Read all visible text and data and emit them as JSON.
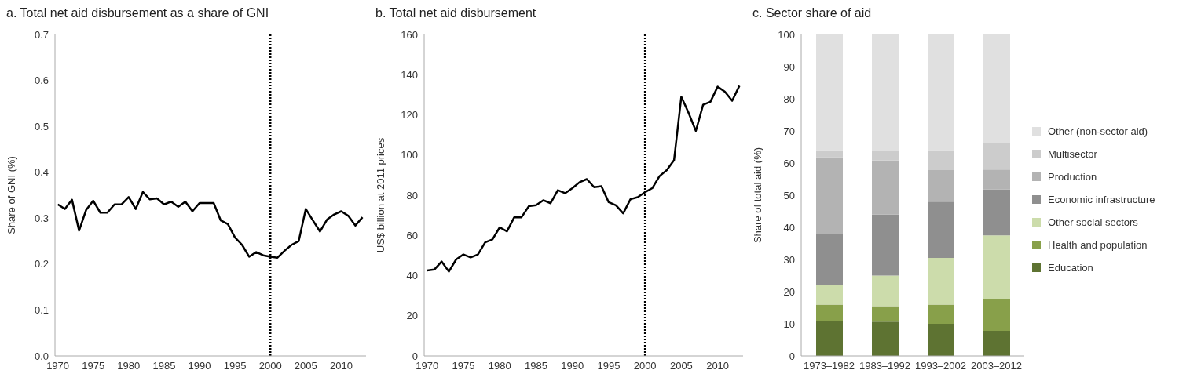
{
  "chart_data": [
    {
      "type": "line",
      "title": "a. Total net aid disbursement as a share of GNI",
      "ylabel": "Share of GNI (%)",
      "x": [
        1970,
        1971,
        1972,
        1973,
        1974,
        1975,
        1976,
        1977,
        1978,
        1979,
        1980,
        1981,
        1982,
        1983,
        1984,
        1985,
        1986,
        1987,
        1988,
        1989,
        1990,
        1991,
        1992,
        1993,
        1994,
        1995,
        1996,
        1997,
        1998,
        1999,
        2000,
        2001,
        2002,
        2003,
        2004,
        2005,
        2006,
        2007,
        2008,
        2009,
        2010,
        2011,
        2012,
        2013
      ],
      "series": [
        {
          "color": "#000000",
          "values": [
            0.33,
            0.32,
            0.34,
            0.273,
            0.318,
            0.338,
            0.312,
            0.312,
            0.33,
            0.33,
            0.346,
            0.32,
            0.357,
            0.341,
            0.343,
            0.33,
            0.336,
            0.325,
            0.336,
            0.315,
            0.333,
            0.333,
            0.333,
            0.295,
            0.287,
            0.258,
            0.242,
            0.216,
            0.226,
            0.219,
            0.216,
            0.214,
            0.229,
            0.242,
            0.25,
            0.32,
            0.295,
            0.271,
            0.297,
            0.308,
            0.315,
            0.305,
            0.284,
            0.302
          ]
        }
      ],
      "xlim": [
        1969.6,
        2013.5
      ],
      "xticks": [
        1970,
        1975,
        1980,
        1985,
        1990,
        1995,
        2000,
        2005,
        2010
      ],
      "ylim": [
        0,
        0.7
      ],
      "yticks": [
        {
          "value": 0,
          "label": "0.0"
        },
        0.1,
        0.2,
        0.3,
        0.4,
        0.5,
        0.6,
        0.7
      ],
      "ref_lines": [
        {
          "axis": "x",
          "value": 2000,
          "line_style": "dotted",
          "color": "#000000"
        }
      ],
      "grid": false,
      "marker": "none",
      "line_style": "solid"
    },
    {
      "type": "line",
      "title": "b. Total net aid disbursement",
      "ylabel": "US$ billion at 2011 prices",
      "x": [
        1970,
        1971,
        1972,
        1973,
        1974,
        1975,
        1976,
        1977,
        1978,
        1979,
        1980,
        1981,
        1982,
        1983,
        1984,
        1985,
        1986,
        1987,
        1988,
        1989,
        1990,
        1991,
        1992,
        1993,
        1994,
        1995,
        1996,
        1997,
        1998,
        1999,
        2000,
        2001,
        2002,
        2003,
        2004,
        2005,
        2006,
        2007,
        2008,
        2009,
        2010,
        2011,
        2012,
        2013
      ],
      "series": [
        {
          "color": "#000000",
          "values": [
            42.5,
            43,
            47,
            42,
            48,
            50.5,
            49,
            50.5,
            56.5,
            58,
            64,
            62,
            69,
            69,
            74.5,
            75,
            77.5,
            76,
            82.5,
            81,
            83.5,
            86.5,
            88,
            84,
            84.5,
            76.5,
            75,
            71,
            78,
            79,
            81.5,
            83.5,
            89.5,
            92.5,
            97.5,
            129,
            121,
            112,
            125,
            126.5,
            134,
            131.5,
            127,
            134.5
          ]
        }
      ],
      "xlim": [
        1969.6,
        2013.5
      ],
      "xticks": [
        1970,
        1975,
        1980,
        1985,
        1990,
        1995,
        2000,
        2005,
        2010
      ],
      "ylim": [
        0,
        160
      ],
      "yticks": [
        0,
        20,
        40,
        60,
        80,
        100,
        120,
        140,
        160
      ],
      "ref_lines": [
        {
          "axis": "x",
          "value": 2000,
          "line_style": "dotted",
          "color": "#000000"
        }
      ],
      "grid": false,
      "marker": "none",
      "line_style": "solid"
    },
    {
      "type": "bar",
      "title": "c. Sector share of aid",
      "ylabel": "Share of total aid (%)",
      "stacked": true,
      "categories": [
        "1973–1982",
        "1983–1992",
        "1993–2002",
        "2003–2012"
      ],
      "series": [
        {
          "name": "Education",
          "color": "#5e7332",
          "values": [
            11,
            10.7,
            10,
            7.8
          ]
        },
        {
          "name": "Health and population",
          "color": "#88a04a",
          "values": [
            5,
            4.8,
            6,
            10
          ]
        },
        {
          "name": "Other social sectors",
          "color": "#ccdcab",
          "values": [
            6,
            9.5,
            14.5,
            19.7
          ]
        },
        {
          "name": "Economic infrastructure",
          "color": "#8f8f8f",
          "values": [
            16,
            19,
            17.5,
            14.3
          ]
        },
        {
          "name": "Production",
          "color": "#b3b3b3",
          "values": [
            23.8,
            16.8,
            9.8,
            6.2
          ]
        },
        {
          "name": "Multisector",
          "color": "#cccccc",
          "values": [
            2.2,
            2.9,
            6.2,
            8.2
          ]
        },
        {
          "name": "Other (non-sector aid)",
          "color": "#e0e0e0",
          "values": [
            36,
            36.3,
            36,
            33.8
          ]
        }
      ],
      "ylim": [
        0,
        100
      ],
      "yticks": [
        0,
        10,
        20,
        30,
        40,
        50,
        60,
        70,
        80,
        90,
        100
      ],
      "grid": false,
      "legend": "right"
    }
  ]
}
